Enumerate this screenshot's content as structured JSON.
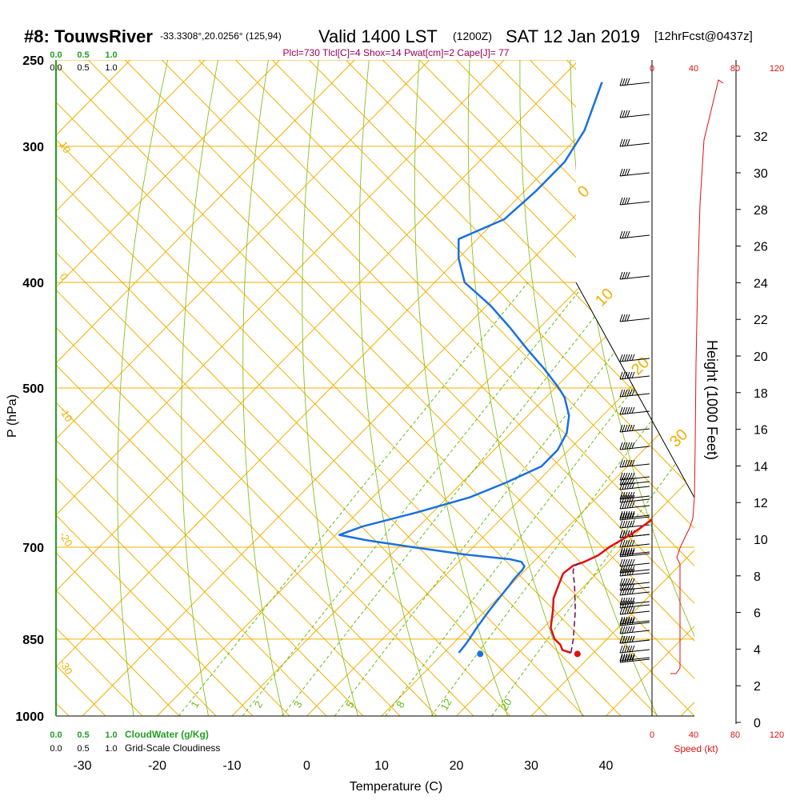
{
  "header": {
    "title": "#8: TouwsRiver",
    "coords": "-33.3308°,20.0256° (125,94)",
    "valid": "Valid 1400 LST",
    "utc": "(1200Z)",
    "date": "SAT 12 Jan 2019",
    "forecast": "[12hrFcst@0437z]"
  },
  "indices": "Plcl=730 Tlcl[C]=4 Shox=14 Pwat[cm]=2 Cape[J]= 77",
  "colors": {
    "isotherm": "#f0b000",
    "dry_adiabat": "#88c020",
    "moist_adiabat": "#88c020",
    "mixing_ratio": "#66bb11",
    "temperature": "#e01010",
    "dewpoint": "#1a70e0",
    "parcel": "#7a1060",
    "green": "#20a020",
    "red": "#e01010",
    "indices": "#990055"
  },
  "axes": {
    "x_label": "Temperature (C)",
    "y_label": "P (hPa)",
    "height_label": "Height (1000 Feet)",
    "speed_label": "Speed (kt)",
    "pressure_ticks": [
      "250",
      "300",
      "400",
      "500",
      "700",
      "850",
      "1000"
    ],
    "temperature_ticks": [
      "-30",
      "-20",
      "-10",
      "0",
      "10",
      "20",
      "30",
      "40"
    ],
    "height_ticks": [
      "0",
      "2",
      "4",
      "6",
      "8",
      "10",
      "12",
      "14",
      "16",
      "18",
      "20",
      "22",
      "24",
      "26",
      "28",
      "30",
      "32"
    ],
    "speed_ticks": [
      "0",
      "40",
      "80",
      "120"
    ]
  },
  "cloud_scale": {
    "cloudwater_ticks": [
      "0.0",
      "0.5",
      "1.0"
    ],
    "cloudiness_ticks": [
      "0.0",
      "0.5",
      "1.0"
    ],
    "cloudwater_label": "CloudWater (g/Kg)",
    "cloudiness_label": "Grid-Scale Cloudiness"
  },
  "isoline_labels": {
    "mixing_ratio": [
      "1",
      "2",
      "3",
      "5",
      "8",
      "12",
      "20"
    ],
    "left_isotherm": [
      "10",
      "0",
      "-10",
      "-20",
      "-30"
    ],
    "right_isotherm": [
      "0",
      "10",
      "20",
      "30"
    ]
  },
  "chart_data": {
    "type": "line",
    "subtype": "skew-T log-P sounding",
    "title": "#8: TouwsRiver",
    "xlabel": "Temperature (C)",
    "ylabel": "P (hPa)",
    "xlim": [
      -35,
      45
    ],
    "ylim": [
      1000,
      250
    ],
    "yscale": "log",
    "grid": true,
    "series": [
      {
        "key": "temperature",
        "pressure": [
          875,
          870,
          860,
          850,
          830,
          800,
          780,
          760,
          740,
          728,
          722,
          712,
          700,
          680,
          660,
          640,
          620,
          600,
          580,
          560,
          540,
          520,
          500,
          480,
          460,
          440,
          420,
          400,
          380,
          360,
          340,
          320,
          300,
          280,
          262
        ],
        "temperature": [
          27,
          25.5,
          24.5,
          23,
          21,
          19,
          17.5,
          16.5,
          15.5,
          15.8,
          16.8,
          17.8,
          18.2,
          19.5,
          20.3,
          21.2,
          22,
          22.8,
          23.2,
          23.5,
          23.6,
          23.4,
          22.6,
          21.7,
          20.5,
          19.1,
          17.6,
          16,
          14.2,
          12.3,
          10.2,
          7.9,
          5.2,
          2.3,
          -0.5
        ]
      },
      {
        "key": "dewpoint",
        "pressure": [
          875,
          860,
          850,
          830,
          800,
          780,
          760,
          750,
          740,
          735,
          729,
          722,
          718,
          711,
          700,
          690,
          682,
          670,
          650,
          630,
          610,
          590,
          570,
          550,
          530,
          510,
          500,
          480,
          460,
          440,
          420,
          400,
          380,
          365,
          350,
          330,
          310,
          290,
          262
        ],
        "temperature": [
          12,
          11.8,
          11.6,
          11.1,
          10.5,
          10.2,
          9.9,
          9.7,
          9.6,
          9.6,
          9.4,
          8.4,
          6.5,
          0,
          -8,
          -15,
          -19.5,
          -17.5,
          -12,
          -7,
          -4,
          -1.5,
          -1.5,
          -2.5,
          -4.5,
          -7.5,
          -9.5,
          -14,
          -19,
          -24,
          -29.5,
          -36,
          -40,
          -42.5,
          -39,
          -38.5,
          -38.5,
          -40,
          -44
        ]
      },
      {
        "key": "parcel",
        "pressure": [
          875,
          850,
          800,
          760,
          736,
          728,
          722
        ],
        "temperature": [
          27,
          25.5,
          22,
          18.7,
          16.5,
          16,
          16.5
        ]
      }
    ],
    "surface_points": [
      {
        "key": "temperature",
        "pressure": 877,
        "temperature": 28
      },
      {
        "key": "dewpoint",
        "pressure": 877,
        "temperature": 15
      }
    ]
  }
}
